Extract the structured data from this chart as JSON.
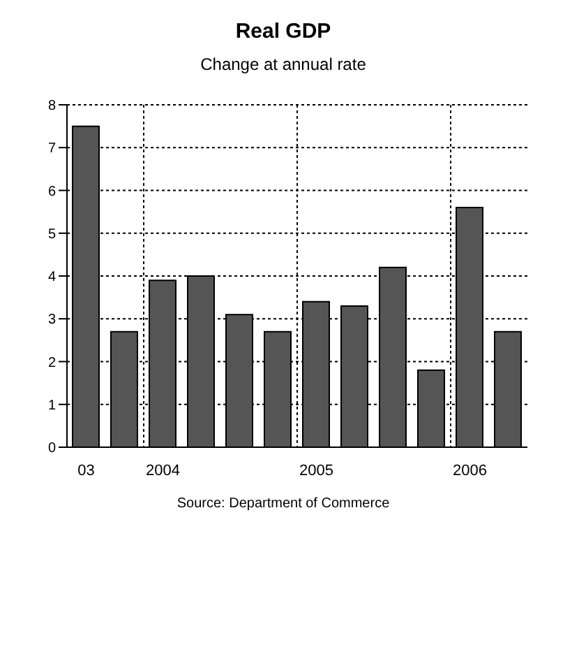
{
  "chart_data": {
    "type": "bar",
    "title": "Real GDP",
    "subtitle": "Change at annual rate",
    "categories": [
      "03",
      null,
      "2004",
      null,
      null,
      null,
      "2005",
      null,
      null,
      null,
      "2006",
      null
    ],
    "values": [
      7.5,
      2.7,
      3.9,
      4.0,
      3.1,
      2.7,
      3.4,
      3.3,
      4.2,
      1.8,
      5.6,
      2.7
    ],
    "color": "#555555",
    "ylim": [
      0,
      8
    ],
    "yticks": [
      0,
      1,
      2,
      3,
      4,
      5,
      6,
      7,
      8
    ],
    "grid": true,
    "annotations": [
      "Source: Department of Commerce"
    ]
  }
}
